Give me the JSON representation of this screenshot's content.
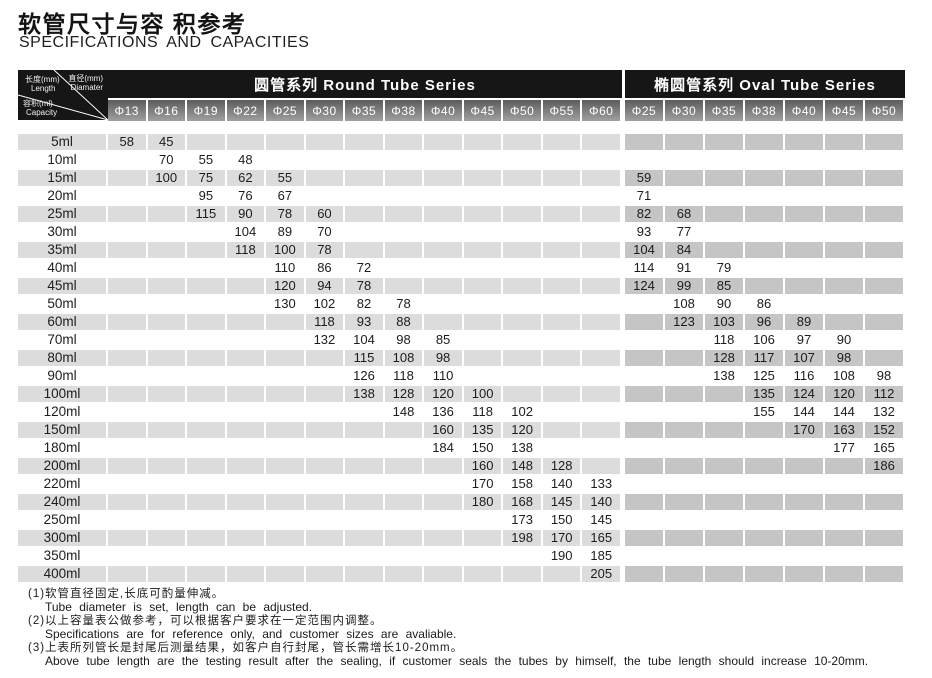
{
  "title": {
    "cn": "软管尺寸与容 积参考",
    "en": "SPECIFICATIONS AND CAPACITIES"
  },
  "table": {
    "corner": {
      "length_cn": "长度(mm)",
      "length_en": "Length",
      "diameter_cn": "直径(mm)",
      "diameter_en": "Diamater",
      "capacity_cn": "容积(ml)",
      "capacity_en": "Capacity"
    },
    "round_series_label": "圆管系列 Round Tube Series",
    "oval_series_label": "椭圆管系列 Oval Tube Series",
    "round_columns": [
      "Φ13",
      "Φ16",
      "Φ19",
      "Φ22",
      "Φ25",
      "Φ30",
      "Φ35",
      "Φ38",
      "Φ40",
      "Φ45",
      "Φ50",
      "Φ55",
      "Φ60"
    ],
    "oval_columns": [
      "Φ25",
      "Φ30",
      "Φ35",
      "Φ38",
      "Φ40",
      "Φ45",
      "Φ50"
    ],
    "rows": [
      {
        "capacity": "5ml",
        "round": [
          "58",
          "45",
          "",
          "",
          "",
          "",
          "",
          "",
          "",
          "",
          "",
          "",
          ""
        ],
        "oval": [
          "",
          "",
          "",
          "",
          "",
          "",
          ""
        ]
      },
      {
        "capacity": "10ml",
        "round": [
          "",
          "70",
          "55",
          "48",
          "",
          "",
          "",
          "",
          "",
          "",
          "",
          "",
          ""
        ],
        "oval": [
          "",
          "",
          "",
          "",
          "",
          "",
          ""
        ]
      },
      {
        "capacity": "15ml",
        "round": [
          "",
          "100",
          "75",
          "62",
          "55",
          "",
          "",
          "",
          "",
          "",
          "",
          "",
          ""
        ],
        "oval": [
          "59",
          "",
          "",
          "",
          "",
          "",
          ""
        ]
      },
      {
        "capacity": "20ml",
        "round": [
          "",
          "",
          "95",
          "76",
          "67",
          "",
          "",
          "",
          "",
          "",
          "",
          "",
          ""
        ],
        "oval": [
          "71",
          "",
          "",
          "",
          "",
          "",
          ""
        ]
      },
      {
        "capacity": "25ml",
        "round": [
          "",
          "",
          "115",
          "90",
          "78",
          "60",
          "",
          "",
          "",
          "",
          "",
          "",
          ""
        ],
        "oval": [
          "82",
          "68",
          "",
          "",
          "",
          "",
          ""
        ]
      },
      {
        "capacity": "30ml",
        "round": [
          "",
          "",
          "",
          "104",
          "89",
          "70",
          "",
          "",
          "",
          "",
          "",
          "",
          ""
        ],
        "oval": [
          "93",
          "77",
          "",
          "",
          "",
          "",
          ""
        ]
      },
      {
        "capacity": "35ml",
        "round": [
          "",
          "",
          "",
          "118",
          "100",
          "78",
          "",
          "",
          "",
          "",
          "",
          "",
          ""
        ],
        "oval": [
          "104",
          "84",
          "",
          "",
          "",
          "",
          ""
        ]
      },
      {
        "capacity": "40ml",
        "round": [
          "",
          "",
          "",
          "",
          "110",
          "86",
          "72",
          "",
          "",
          "",
          "",
          "",
          ""
        ],
        "oval": [
          "114",
          "91",
          "79",
          "",
          "",
          "",
          ""
        ]
      },
      {
        "capacity": "45ml",
        "round": [
          "",
          "",
          "",
          "",
          "120",
          "94",
          "78",
          "",
          "",
          "",
          "",
          "",
          ""
        ],
        "oval": [
          "124",
          "99",
          "85",
          "",
          "",
          "",
          ""
        ]
      },
      {
        "capacity": "50ml",
        "round": [
          "",
          "",
          "",
          "",
          "130",
          "102",
          "82",
          "78",
          "",
          "",
          "",
          "",
          ""
        ],
        "oval": [
          "",
          "108",
          "90",
          "86",
          "",
          "",
          ""
        ]
      },
      {
        "capacity": "60ml",
        "round": [
          "",
          "",
          "",
          "",
          "",
          "118",
          "93",
          "88",
          "",
          "",
          "",
          "",
          ""
        ],
        "oval": [
          "",
          "123",
          "103",
          "96",
          "89",
          "",
          ""
        ]
      },
      {
        "capacity": "70ml",
        "round": [
          "",
          "",
          "",
          "",
          "",
          "132",
          "104",
          "98",
          "85",
          "",
          "",
          "",
          ""
        ],
        "oval": [
          "",
          "",
          "118",
          "106",
          "97",
          "90",
          ""
        ]
      },
      {
        "capacity": "80ml",
        "round": [
          "",
          "",
          "",
          "",
          "",
          "",
          "115",
          "108",
          "98",
          "",
          "",
          "",
          ""
        ],
        "oval": [
          "",
          "",
          "128",
          "117",
          "107",
          "98",
          ""
        ]
      },
      {
        "capacity": "90ml",
        "round": [
          "",
          "",
          "",
          "",
          "",
          "",
          "126",
          "118",
          "110",
          "",
          "",
          "",
          ""
        ],
        "oval": [
          "",
          "",
          "138",
          "125",
          "116",
          "108",
          "98"
        ]
      },
      {
        "capacity": "100ml",
        "round": [
          "",
          "",
          "",
          "",
          "",
          "",
          "138",
          "128",
          "120",
          "100",
          "",
          "",
          ""
        ],
        "oval": [
          "",
          "",
          "",
          "135",
          "124",
          "120",
          "112"
        ]
      },
      {
        "capacity": "120ml",
        "round": [
          "",
          "",
          "",
          "",
          "",
          "",
          "",
          "148",
          "136",
          "118",
          "102",
          "",
          ""
        ],
        "oval": [
          "",
          "",
          "",
          "155",
          "144",
          "144",
          "132"
        ]
      },
      {
        "capacity": "150ml",
        "round": [
          "",
          "",
          "",
          "",
          "",
          "",
          "",
          "",
          "160",
          "135",
          "120",
          "",
          ""
        ],
        "oval": [
          "",
          "",
          "",
          "",
          "170",
          "163",
          "152"
        ]
      },
      {
        "capacity": "180ml",
        "round": [
          "",
          "",
          "",
          "",
          "",
          "",
          "",
          "",
          "184",
          "150",
          "138",
          "",
          ""
        ],
        "oval": [
          "",
          "",
          "",
          "",
          "",
          "177",
          "165"
        ]
      },
      {
        "capacity": "200ml",
        "round": [
          "",
          "",
          "",
          "",
          "",
          "",
          "",
          "",
          "",
          "160",
          "148",
          "128",
          ""
        ],
        "oval": [
          "",
          "",
          "",
          "",
          "",
          "",
          "186"
        ]
      },
      {
        "capacity": "220ml",
        "round": [
          "",
          "",
          "",
          "",
          "",
          "",
          "",
          "",
          "",
          "170",
          "158",
          "140",
          "133"
        ],
        "oval": [
          "",
          "",
          "",
          "",
          "",
          "",
          ""
        ]
      },
      {
        "capacity": "240ml",
        "round": [
          "",
          "",
          "",
          "",
          "",
          "",
          "",
          "",
          "",
          "180",
          "168",
          "145",
          "140"
        ],
        "oval": [
          "",
          "",
          "",
          "",
          "",
          "",
          ""
        ]
      },
      {
        "capacity": "250ml",
        "round": [
          "",
          "",
          "",
          "",
          "",
          "",
          "",
          "",
          "",
          "",
          "173",
          "150",
          "145"
        ],
        "oval": [
          "",
          "",
          "",
          "",
          "",
          "",
          ""
        ]
      },
      {
        "capacity": "300ml",
        "round": [
          "",
          "",
          "",
          "",
          "",
          "",
          "",
          "",
          "",
          "",
          "198",
          "170",
          "165"
        ],
        "oval": [
          "",
          "",
          "",
          "",
          "",
          "",
          ""
        ]
      },
      {
        "capacity": "350ml",
        "round": [
          "",
          "",
          "",
          "",
          "",
          "",
          "",
          "",
          "",
          "",
          "",
          "190",
          "185"
        ],
        "oval": [
          "",
          "",
          "",
          "",
          "",
          "",
          ""
        ]
      },
      {
        "capacity": "400ml",
        "round": [
          "",
          "",
          "",
          "",
          "",
          "",
          "",
          "",
          "",
          "",
          "",
          "",
          "205"
        ],
        "oval": [
          "",
          "",
          "",
          "",
          "",
          "",
          ""
        ]
      }
    ]
  },
  "notes": [
    {
      "cn": "(1)软管直径固定,长底可酌量伸减。",
      "en": "Tube diameter is set, length can be adjusted."
    },
    {
      "cn": "(2)以上容量表公做参考，可以根据客户要求在一定范围内调整。",
      "en": "Specifications are for reference only, and customer sizes are avaliable."
    },
    {
      "cn": "(3)上表所列管长是封尾后测量结果，如客户自行封尾，管长需增长10-20mm。",
      "en": "Above tube length are the testing result after the sealing, if customer seals the tubes by himself, the tube length should increase 10-20mm."
    }
  ],
  "colors": {
    "header_black": "#161616",
    "header_cell_gradient_top": "#5c5c5c",
    "header_cell_gradient_bottom": "#a0a0a0",
    "stripe_round": "#dcdcdc",
    "stripe_oval": "#c5c5c5",
    "text": "#1c1c1c"
  }
}
